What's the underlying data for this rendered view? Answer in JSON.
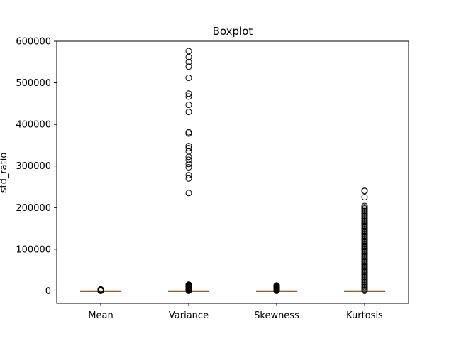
{
  "chart_data": {
    "type": "box",
    "title": "Boxplot",
    "xlabel": "",
    "ylabel": "std_ratio",
    "categories": [
      "Mean",
      "Variance",
      "Skewness",
      "Kurtosis"
    ],
    "ylim": [
      -30000,
      600000
    ],
    "yticks": [
      0,
      100000,
      200000,
      300000,
      400000,
      500000,
      600000
    ],
    "ytick_labels": [
      "0",
      "100000",
      "200000",
      "300000",
      "400000",
      "500000",
      "600000"
    ],
    "grid": false,
    "colors": {
      "box": "#000000",
      "median": "#e67e22",
      "flier": "#000000"
    },
    "boxes": [
      {
        "name": "Mean",
        "q1": 0,
        "median": 0,
        "q3": 0,
        "whisker_low": 0,
        "whisker_high": 0,
        "outliers": [
          0,
          300,
          600,
          900,
          1200,
          1500,
          1800,
          2100,
          2400,
          2700,
          3000,
          3300,
          3600
        ]
      },
      {
        "name": "Variance",
        "q1": 0,
        "median": 0,
        "q3": 0,
        "whisker_low": 0,
        "whisker_high": 0,
        "outliers": [
          0,
          1000,
          2000,
          3000,
          4000,
          5000,
          6000,
          7000,
          8000,
          9000,
          10000,
          11000,
          12000,
          13000,
          14000,
          15000,
          235000,
          270000,
          278000,
          297000,
          305000,
          315000,
          322000,
          335000,
          343000,
          348000,
          378000,
          381000,
          430000,
          447000,
          467000,
          474000,
          512000,
          539000,
          550000,
          562000,
          576000
        ]
      },
      {
        "name": "Skewness",
        "q1": 0,
        "median": 0,
        "q3": 0,
        "whisker_low": 0,
        "whisker_high": 0,
        "outliers": [
          0,
          1000,
          2000,
          3000,
          4000,
          5000,
          6000,
          7000,
          8000,
          9000,
          10000,
          11000,
          12000,
          13000
        ]
      },
      {
        "name": "Kurtosis",
        "q1": 0,
        "median": 0,
        "q3": 0,
        "whisker_low": 0,
        "whisker_high": 0,
        "outliers": [
          0,
          3000,
          6000,
          9000,
          12000,
          15000,
          18000,
          21000,
          24000,
          27000,
          30000,
          33000,
          36000,
          39000,
          42000,
          45000,
          48000,
          51000,
          54000,
          57000,
          60000,
          63000,
          66000,
          69000,
          72000,
          75000,
          78000,
          81000,
          84000,
          87000,
          90000,
          93000,
          96000,
          99000,
          102000,
          105000,
          108000,
          111000,
          114000,
          117000,
          120000,
          123000,
          126000,
          129000,
          132000,
          135000,
          138000,
          141000,
          144000,
          147000,
          150000,
          153000,
          156000,
          159000,
          162000,
          165000,
          168000,
          171000,
          174000,
          177000,
          180000,
          183000,
          186000,
          189000,
          192000,
          195000,
          198000,
          201000,
          204000,
          225000,
          240000,
          242000
        ]
      }
    ]
  }
}
